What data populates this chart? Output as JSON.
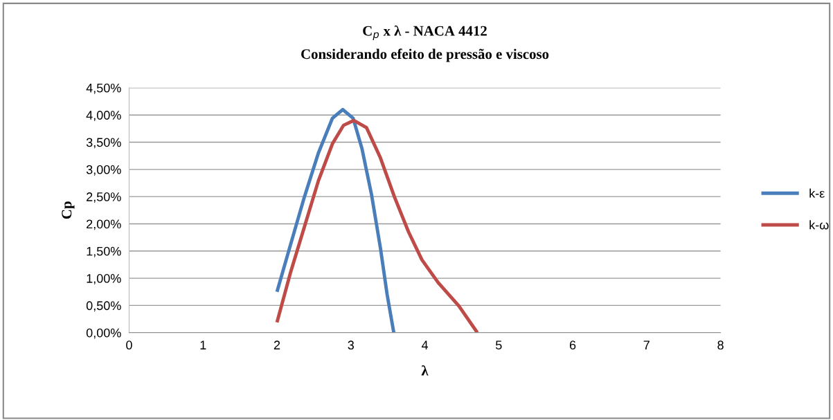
{
  "chart_data": {
    "type": "line",
    "title": "C$_{p}$ x λ - NACA 4412",
    "subtitle": "Considerando efeito de pressão e viscoso",
    "xlabel": "λ",
    "ylabel": "Cp",
    "xlim": [
      0,
      8
    ],
    "xticks": [
      0,
      1,
      2,
      3,
      4,
      5,
      6,
      7,
      8
    ],
    "ylim": [
      0,
      4.5
    ],
    "yticks": [
      {
        "value": 0,
        "label": "0,00%"
      },
      {
        "value": 0.5,
        "label": "0,50%"
      },
      {
        "value": 1,
        "label": "1,00%"
      },
      {
        "value": 1.5,
        "label": "1,50%"
      },
      {
        "value": 2,
        "label": "2,00%"
      },
      {
        "value": 2.5,
        "label": "2,50%"
      },
      {
        "value": 3,
        "label": "3,00%"
      },
      {
        "value": 3.5,
        "label": "3,50%"
      },
      {
        "value": 4,
        "label": "4,00%"
      },
      {
        "value": 4.5,
        "label": "4,50%"
      }
    ],
    "grid": "y",
    "legend": "right",
    "marker": "none",
    "line_style": "solid",
    "series": [
      {
        "name": "k-ε",
        "color": "#4a7ebb",
        "x": [
          2.0,
          2.18,
          2.37,
          2.56,
          2.75,
          2.89,
          3.03,
          3.15,
          3.28,
          3.4,
          3.49,
          3.58
        ],
        "values": [
          0.75,
          1.6,
          2.49,
          3.3,
          3.94,
          4.1,
          3.94,
          3.38,
          2.53,
          1.55,
          0.7,
          0
        ]
      },
      {
        "name": "k-ω",
        "color": "#be4b48",
        "x": [
          2.0,
          2.18,
          2.37,
          2.56,
          2.75,
          2.9,
          3.04,
          3.21,
          3.4,
          3.59,
          3.78,
          3.96,
          4.18,
          4.46,
          4.71
        ],
        "values": [
          0.19,
          1.09,
          1.94,
          2.79,
          3.47,
          3.81,
          3.9,
          3.77,
          3.21,
          2.49,
          1.85,
          1.34,
          0.92,
          0.49,
          0
        ]
      }
    ]
  }
}
